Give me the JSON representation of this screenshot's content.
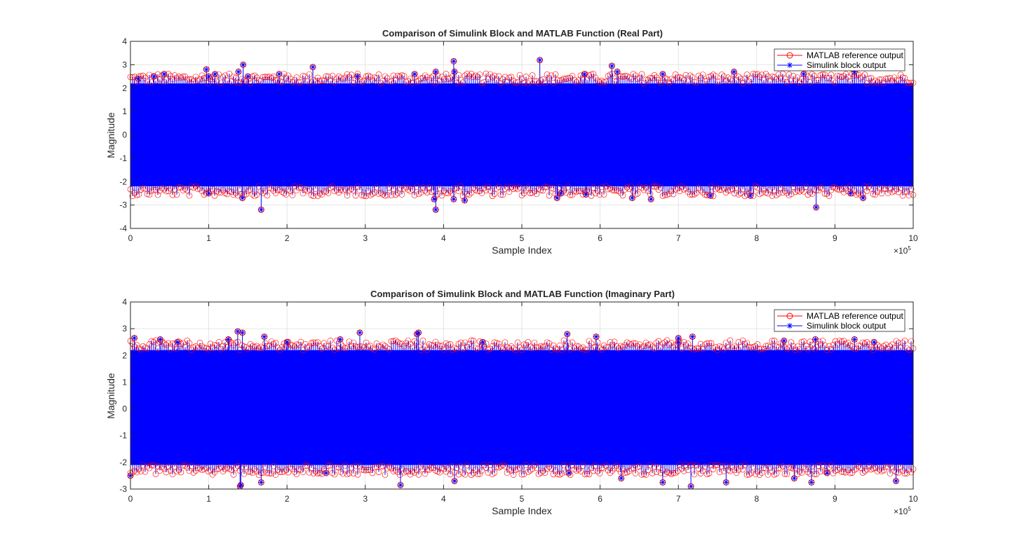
{
  "colors": {
    "reference": "#ff0000",
    "block": "#0000ff",
    "grid": "#dfdfdf",
    "axis": "#262626"
  },
  "chart_data": [
    {
      "type": "stem",
      "title": "Comparison of Simulink Block and MATLAB Function (Real Part)",
      "xlabel": "Sample Index",
      "ylabel": "Magnitude",
      "xlim": [
        0,
        1000000
      ],
      "ylim": [
        -4,
        4
      ],
      "x_ticks": [
        0,
        100000,
        200000,
        300000,
        400000,
        500000,
        600000,
        700000,
        800000,
        900000,
        1000000
      ],
      "x_tick_labels": [
        "0",
        "1",
        "2",
        "3",
        "4",
        "5",
        "6",
        "7",
        "8",
        "9",
        "10"
      ],
      "y_ticks": [
        -4,
        -3,
        -2,
        -1,
        0,
        1,
        2,
        3,
        4
      ],
      "y_tick_labels": [
        "-4",
        "-3",
        "-2",
        "-1",
        "0",
        "1",
        "2",
        "3",
        "4"
      ],
      "x_exponent": "×10",
      "x_exponent_power": "5",
      "grid": true,
      "legend_position": "top-right",
      "series": [
        {
          "name": "MATLAB reference output",
          "marker": "circle",
          "color": "#ff0000"
        },
        {
          "name": "Simulink block output",
          "marker": "asterisk",
          "color": "#0000ff"
        }
      ],
      "band": {
        "low": -2.2,
        "high": 2.2
      },
      "outliers": [
        {
          "x": 30000,
          "y": 2.5
        },
        {
          "x": 100000,
          "y": 2.5
        },
        {
          "x": 100000,
          "y": -2.5
        },
        {
          "x": 190000,
          "y": 2.6
        },
        {
          "x": 290000,
          "y": 2.5
        },
        {
          "x": 680000,
          "y": 2.6
        },
        {
          "x": 860000,
          "y": 2.6
        },
        {
          "x": 550000,
          "y": -2.5
        },
        {
          "x": 920000,
          "y": -2.5
        }
      ],
      "peaks": [
        {
          "x": 10000,
          "y": 2.4
        },
        {
          "x": 43000,
          "y": 2.6
        },
        {
          "x": 97000,
          "y": 2.8
        },
        {
          "x": 108000,
          "y": 2.6
        },
        {
          "x": 138000,
          "y": 2.7
        },
        {
          "x": 144000,
          "y": 3.0
        },
        {
          "x": 150000,
          "y": 2.5
        },
        {
          "x": 233000,
          "y": 2.9
        },
        {
          "x": 363000,
          "y": 2.6
        },
        {
          "x": 390000,
          "y": 2.7
        },
        {
          "x": 413000,
          "y": 3.15
        },
        {
          "x": 414000,
          "y": 2.7
        },
        {
          "x": 523000,
          "y": 3.2
        },
        {
          "x": 580000,
          "y": 2.6
        },
        {
          "x": 622000,
          "y": 2.7
        },
        {
          "x": 615000,
          "y": 2.95
        },
        {
          "x": 771000,
          "y": 2.7
        },
        {
          "x": 925000,
          "y": 2.7
        },
        {
          "x": 143000,
          "y": -2.7
        },
        {
          "x": 167000,
          "y": -3.2
        },
        {
          "x": 388000,
          "y": -2.75
        },
        {
          "x": 390000,
          "y": -3.2
        },
        {
          "x": 413000,
          "y": -2.75
        },
        {
          "x": 427000,
          "y": -2.8
        },
        {
          "x": 545000,
          "y": -2.7
        },
        {
          "x": 582000,
          "y": -2.55
        },
        {
          "x": 641000,
          "y": -2.7
        },
        {
          "x": 665000,
          "y": -2.75
        },
        {
          "x": 876000,
          "y": -3.1
        },
        {
          "x": 936000,
          "y": -2.7
        },
        {
          "x": 741000,
          "y": -2.6
        },
        {
          "x": 792000,
          "y": -2.6
        }
      ]
    },
    {
      "type": "stem",
      "title": "Comparison of Simulink Block and MATLAB Function (Imaginary Part)",
      "xlabel": "Sample Index",
      "ylabel": "Magnitude",
      "xlim": [
        0,
        1000000
      ],
      "ylim": [
        -3,
        4
      ],
      "x_ticks": [
        0,
        100000,
        200000,
        300000,
        400000,
        500000,
        600000,
        700000,
        800000,
        900000,
        1000000
      ],
      "x_tick_labels": [
        "0",
        "1",
        "2",
        "3",
        "4",
        "5",
        "6",
        "7",
        "8",
        "9",
        "10"
      ],
      "y_ticks": [
        -3,
        -2,
        -1,
        0,
        1,
        2,
        3,
        4
      ],
      "y_tick_labels": [
        "-3",
        "-2",
        "-1",
        "0",
        "1",
        "2",
        "3",
        "4"
      ],
      "x_exponent": "×10",
      "x_exponent_power": "5",
      "grid": true,
      "legend_position": "top-right",
      "series": [
        {
          "name": "MATLAB reference output",
          "marker": "circle",
          "color": "#ff0000"
        },
        {
          "name": "Simulink block output",
          "marker": "asterisk",
          "color": "#0000ff"
        }
      ],
      "band": {
        "low": -2.1,
        "high": 2.2
      },
      "outliers": [
        {
          "x": 60000,
          "y": 2.5
        },
        {
          "x": 200000,
          "y": 2.5
        },
        {
          "x": 450000,
          "y": 2.5
        },
        {
          "x": 700000,
          "y": 2.5
        },
        {
          "x": 950000,
          "y": 2.5
        },
        {
          "x": 250000,
          "y": -2.4
        },
        {
          "x": 560000,
          "y": -2.4
        },
        {
          "x": 890000,
          "y": -2.4
        }
      ],
      "peaks": [
        {
          "x": 5000,
          "y": 2.65
        },
        {
          "x": 38000,
          "y": 2.6
        },
        {
          "x": 125000,
          "y": 2.6
        },
        {
          "x": 137000,
          "y": 2.9
        },
        {
          "x": 143000,
          "y": 2.85
        },
        {
          "x": 171000,
          "y": 2.7
        },
        {
          "x": 268000,
          "y": 2.6
        },
        {
          "x": 293000,
          "y": 2.85
        },
        {
          "x": 366000,
          "y": 2.8
        },
        {
          "x": 368000,
          "y": 2.85
        },
        {
          "x": 558000,
          "y": 2.8
        },
        {
          "x": 595000,
          "y": 2.7
        },
        {
          "x": 700000,
          "y": 2.65
        },
        {
          "x": 718000,
          "y": 2.7
        },
        {
          "x": 835000,
          "y": 2.55
        },
        {
          "x": 875000,
          "y": 2.6
        },
        {
          "x": 925000,
          "y": 2.6
        },
        {
          "x": 0,
          "y": -2.5
        },
        {
          "x": 140000,
          "y": -2.9
        },
        {
          "x": 141000,
          "y": -2.85
        },
        {
          "x": 167000,
          "y": -2.75
        },
        {
          "x": 345000,
          "y": -2.85
        },
        {
          "x": 414000,
          "y": -2.7
        },
        {
          "x": 627000,
          "y": -2.6
        },
        {
          "x": 680000,
          "y": -2.75
        },
        {
          "x": 716000,
          "y": -2.9
        },
        {
          "x": 761000,
          "y": -2.75
        },
        {
          "x": 870000,
          "y": -2.75
        },
        {
          "x": 978000,
          "y": -2.7
        },
        {
          "x": 848000,
          "y": -2.6
        }
      ]
    }
  ]
}
